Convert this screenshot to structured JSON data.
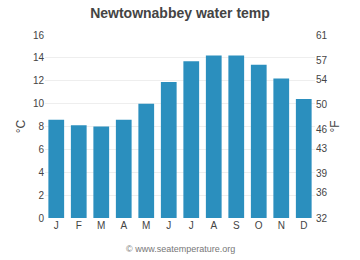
{
  "chart_data": {
    "type": "bar",
    "title": "Newtownabbey water temp",
    "categories": [
      "J",
      "F",
      "M",
      "A",
      "M",
      "J",
      "J",
      "A",
      "S",
      "O",
      "N",
      "D"
    ],
    "values": [
      8.6,
      8.1,
      8.0,
      8.6,
      10.0,
      11.9,
      13.7,
      14.2,
      14.2,
      13.4,
      12.2,
      10.4
    ],
    "color": "#2b8fbe",
    "ylim": [
      0,
      16
    ],
    "yticks": [
      0,
      2,
      4,
      6,
      8,
      10,
      12,
      14,
      16
    ],
    "y2lim": [
      32,
      61
    ],
    "y2ticks": [
      32,
      36,
      39,
      43,
      46,
      50,
      54,
      57,
      61
    ],
    "ylabel": "°C",
    "y2label": "°F",
    "annotations": [
      "© www.seatemperature.org"
    ],
    "grid": true
  }
}
